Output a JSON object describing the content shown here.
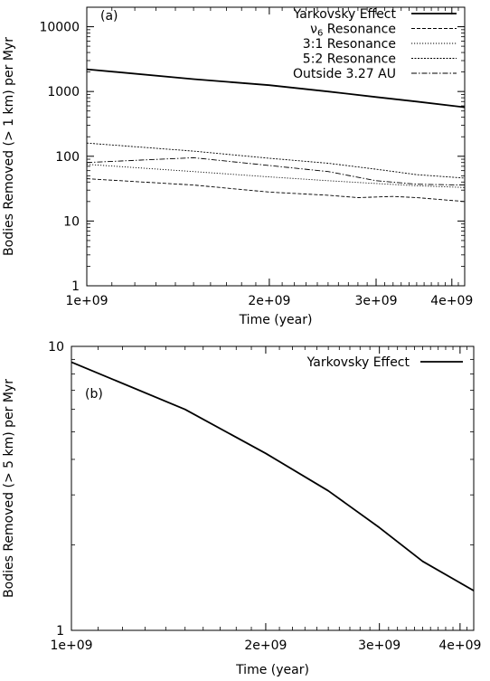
{
  "chart_data": [
    {
      "type": "line",
      "panel_label": "(a)",
      "xlabel": "Time (year)",
      "ylabel": "Bodies Removed (> 1 km) per Myr",
      "x_scale": "log",
      "y_scale": "log",
      "xlim": [
        1000000000.0,
        4200000000.0
      ],
      "ylim": [
        1,
        20000
      ],
      "x_ticks": [
        {
          "value": 1000000000.0,
          "label": "1e+09"
        },
        {
          "value": 2000000000.0,
          "label": "2e+09"
        },
        {
          "value": 3000000000.0,
          "label": "3e+09"
        },
        {
          "value": 4000000000.0,
          "label": "4e+09"
        }
      ],
      "y_ticks": [
        {
          "value": 1,
          "label": "1"
        },
        {
          "value": 10,
          "label": "10"
        },
        {
          "value": 100,
          "label": "100"
        },
        {
          "value": 1000,
          "label": "1000"
        },
        {
          "value": 10000,
          "label": "10000"
        }
      ],
      "legend_position": "top-right",
      "series": [
        {
          "name": "Yarkovsky Effect",
          "style": "solid-thick",
          "x": [
            1000000000.0,
            1500000000.0,
            2000000000.0,
            2500000000.0,
            3000000000.0,
            3500000000.0,
            4200000000.0
          ],
          "y": [
            2200,
            1550,
            1250,
            1000,
            820,
            700,
            570
          ]
        },
        {
          "name": "ν6 Resonance",
          "name_main": "ν",
          "name_sub": "6",
          "name_rest": " Resonance",
          "style": "dashed",
          "x": [
            1000000000.0,
            1500000000.0,
            2000000000.0,
            2500000000.0,
            2800000000.0,
            3200000000.0,
            3500000000.0,
            4200000000.0
          ],
          "y": [
            45,
            36,
            28,
            25,
            23,
            24,
            23,
            20
          ]
        },
        {
          "name": "3:1 Resonance",
          "style": "dotted-fine",
          "x": [
            1000000000.0,
            1500000000.0,
            2000000000.0,
            2500000000.0,
            3000000000.0,
            3500000000.0,
            4200000000.0
          ],
          "y": [
            75,
            58,
            48,
            42,
            38,
            35,
            33
          ]
        },
        {
          "name": "5:2 Resonance",
          "style": "dotted",
          "x": [
            1000000000.0,
            1500000000.0,
            2000000000.0,
            2500000000.0,
            3000000000.0,
            3500000000.0,
            4200000000.0
          ],
          "y": [
            160,
            120,
            93,
            78,
            63,
            52,
            46
          ]
        },
        {
          "name": "Outside 3.27 AU",
          "style": "dashdot",
          "x": [
            1000000000.0,
            1500000000.0,
            2000000000.0,
            2500000000.0,
            3000000000.0,
            3500000000.0,
            4200000000.0
          ],
          "y": [
            80,
            95,
            72,
            58,
            42,
            37,
            36
          ]
        }
      ]
    },
    {
      "type": "line",
      "panel_label": "(b)",
      "xlabel": "Time (year)",
      "ylabel": "Bodies Removed (> 5 km) per Myr",
      "x_scale": "log",
      "y_scale": "log",
      "xlim": [
        1000000000.0,
        4200000000.0
      ],
      "ylim": [
        1,
        10
      ],
      "x_ticks": [
        {
          "value": 1000000000.0,
          "label": "1e+09"
        },
        {
          "value": 2000000000.0,
          "label": "2e+09"
        },
        {
          "value": 3000000000.0,
          "label": "3e+09"
        },
        {
          "value": 4000000000.0,
          "label": "4e+09"
        }
      ],
      "y_ticks": [
        {
          "value": 1,
          "label": "1"
        },
        {
          "value": 10,
          "label": "10"
        }
      ],
      "legend_position": "top-right",
      "series": [
        {
          "name": "Yarkovsky Effect",
          "style": "solid-thick",
          "x": [
            1000000000.0,
            1500000000.0,
            2000000000.0,
            2500000000.0,
            3000000000.0,
            3500000000.0,
            4200000000.0
          ],
          "y": [
            8.8,
            6.0,
            4.2,
            3.1,
            2.3,
            1.75,
            1.38
          ]
        }
      ]
    }
  ]
}
